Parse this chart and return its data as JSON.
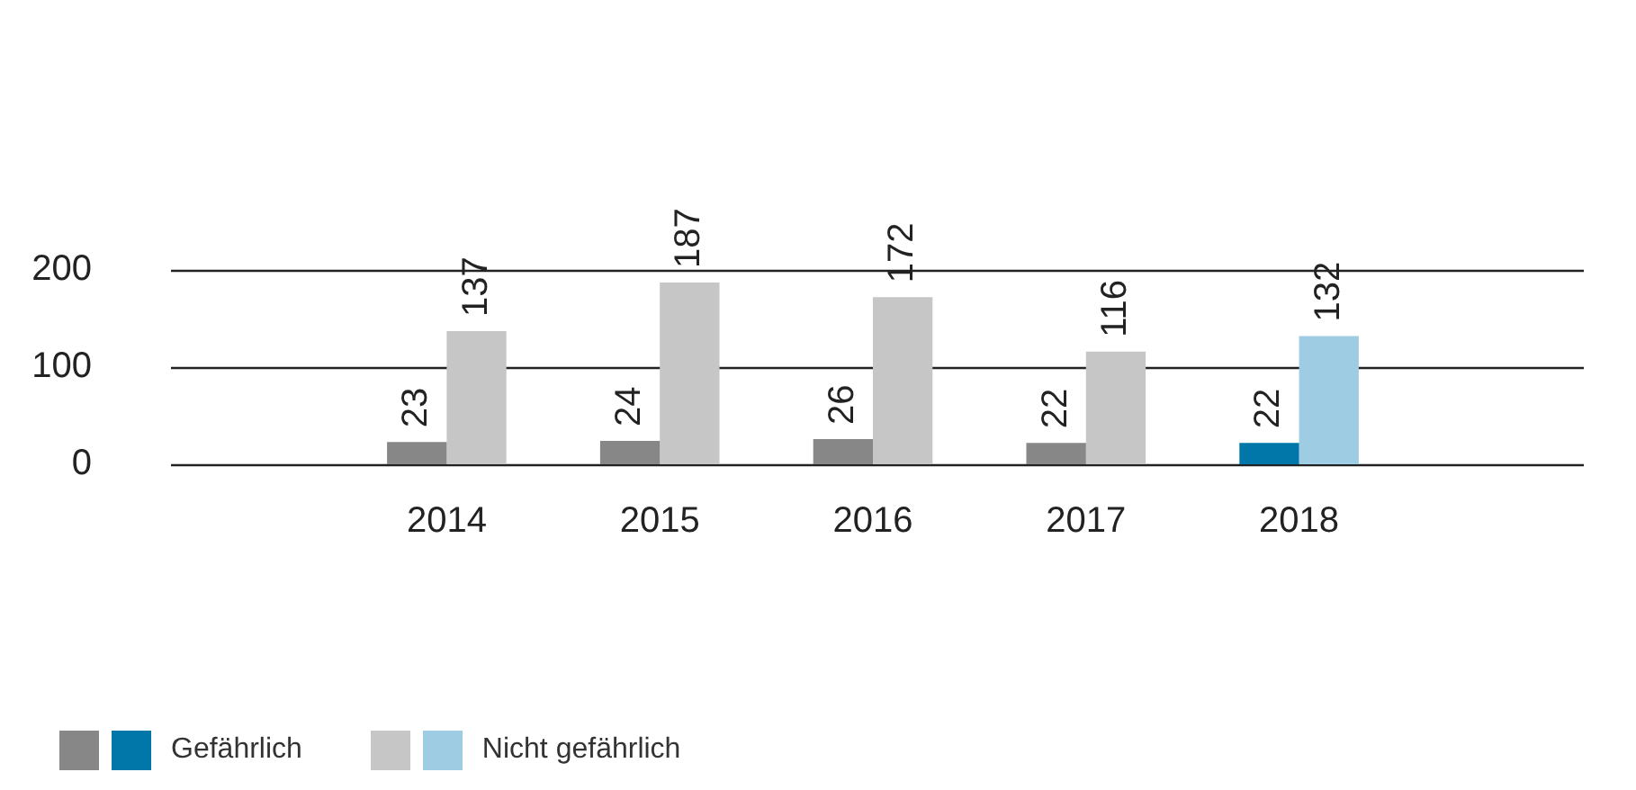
{
  "chart_data": {
    "type": "bar",
    "categories": [
      "2014",
      "2015",
      "2016",
      "2017",
      "2018"
    ],
    "series": [
      {
        "name": "Gefährlich",
        "colors": [
          "#878787",
          "#878787",
          "#878787",
          "#878787",
          "#0077a8"
        ],
        "values": [
          23,
          24,
          26,
          22,
          22
        ]
      },
      {
        "name": "Nicht gefährlich",
        "colors": [
          "#c6c6c6",
          "#c6c6c6",
          "#c6c6c6",
          "#c6c6c6",
          "#9ecde3"
        ],
        "values": [
          137,
          187,
          172,
          116,
          132
        ]
      }
    ],
    "ylim": [
      0,
      200
    ],
    "yticks": [
      0,
      100,
      200
    ],
    "grid": "y",
    "legend": "bottom",
    "data_labels": true
  }
}
